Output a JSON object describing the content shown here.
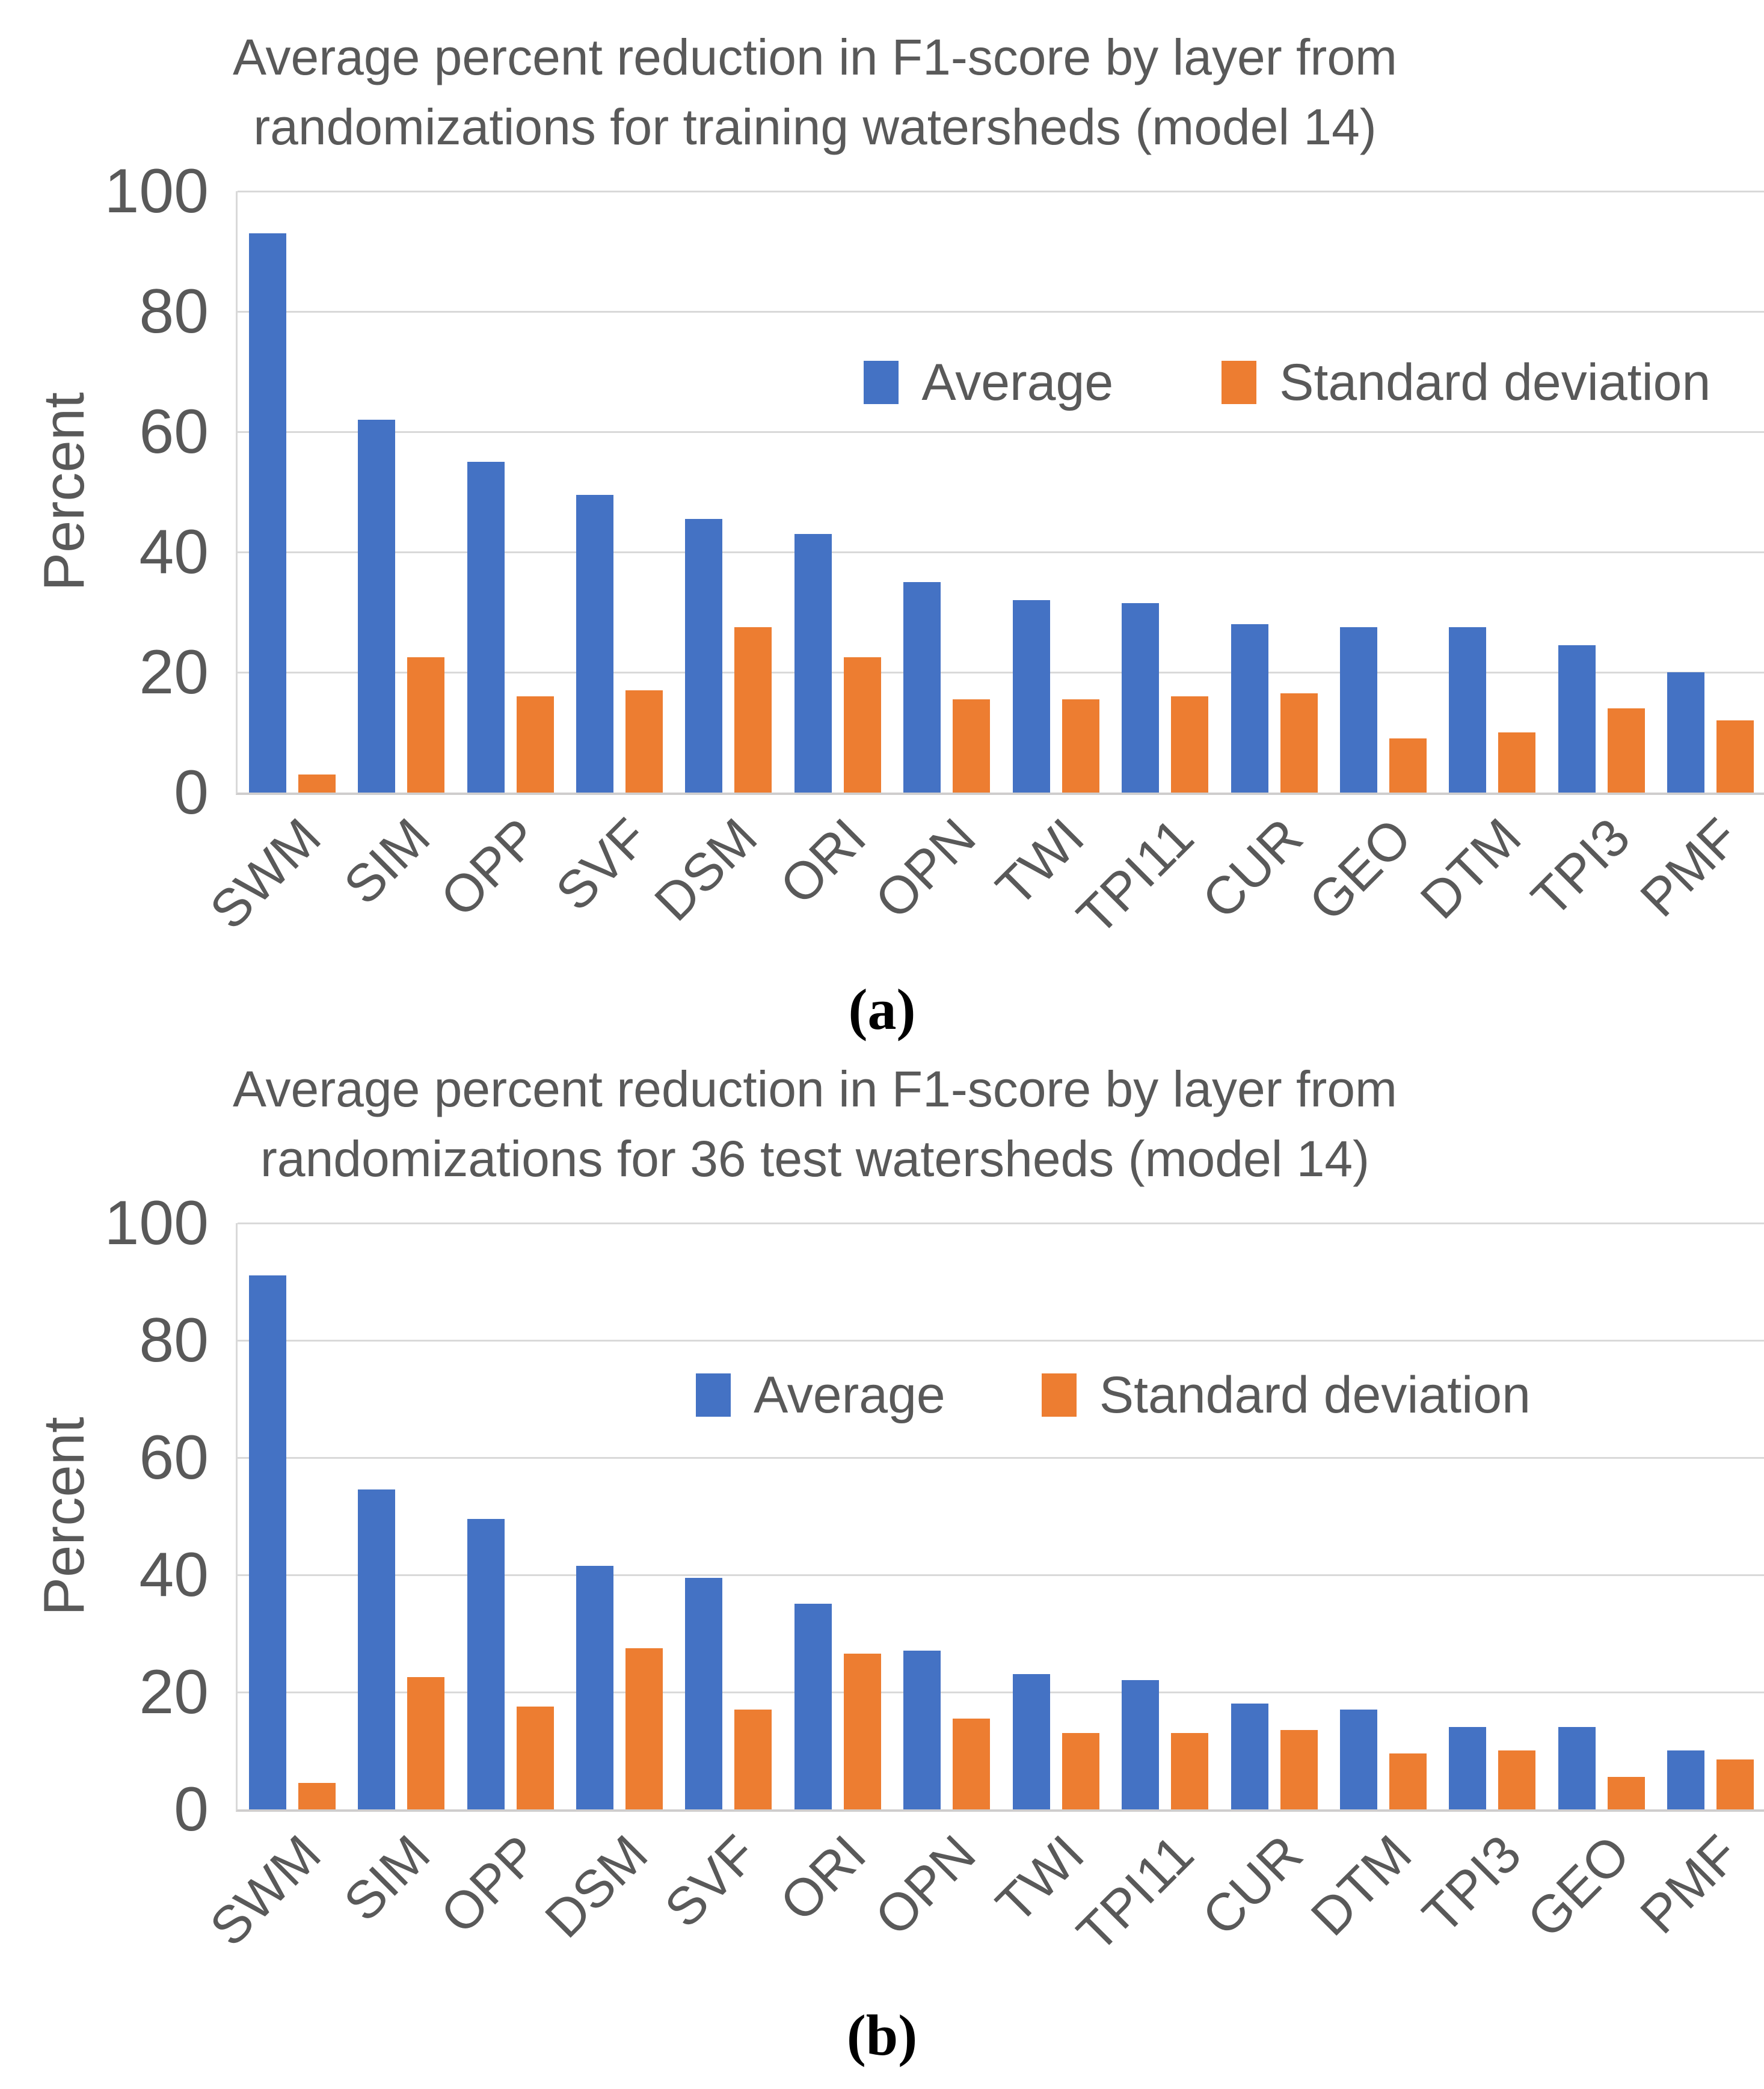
{
  "page": {
    "background": "#ffffff"
  },
  "colors": {
    "average_bar": "#4472C4",
    "stdev_bar": "#ED7D31",
    "text": "#595959",
    "gridline": "#D9D9D9",
    "axis_line": "#CFCDCD"
  },
  "captions": {
    "a": "(a)",
    "b": "(b)"
  },
  "chart_data": [
    {
      "type": "bar",
      "title": "Average percent reduction in F1-score by layer from randomizations for training watersheds (model 14)",
      "title_lines": [
        "Average percent reduction in F1-score by layer from",
        "randomizations for training watersheds (model 14)"
      ],
      "xlabel": "",
      "ylabel": "Percent",
      "ylim": [
        0,
        100
      ],
      "yticks": [
        0,
        20,
        40,
        60,
        80,
        100
      ],
      "grid": true,
      "legend_position": "inside-top-right",
      "legend": [
        "Average",
        "Standard deviation"
      ],
      "categories": [
        "SWM",
        "SIM",
        "OPP",
        "SVF",
        "DSM",
        "ORI",
        "OPN",
        "TWI",
        "TPI11",
        "CUR",
        "GEO",
        "DTM",
        "TPI3",
        "PMF"
      ],
      "series": [
        {
          "name": "Average",
          "color": "#4472C4",
          "values": [
            93,
            62,
            55,
            49.5,
            45.5,
            43,
            35,
            32,
            31.5,
            28,
            27.5,
            27.5,
            24.5,
            20
          ]
        },
        {
          "name": "Standard deviation",
          "color": "#ED7D31",
          "values": [
            3,
            22.5,
            16,
            17,
            27.5,
            22.5,
            15.5,
            15.5,
            16,
            16.5,
            9,
            10,
            14,
            12
          ]
        }
      ]
    },
    {
      "type": "bar",
      "title": "Average percent reduction in F1-score by layer from randomizations for 36 test watersheds (model 14)",
      "title_lines": [
        "Average percent reduction in F1-score by layer from",
        "randomizations for 36 test watersheds (model 14)"
      ],
      "xlabel": "",
      "ylabel": "Percent",
      "ylim": [
        0,
        100
      ],
      "yticks": [
        0,
        20,
        40,
        60,
        80,
        100
      ],
      "grid": true,
      "legend_position": "inside-top-right",
      "legend": [
        "Average",
        "Standard deviation"
      ],
      "categories": [
        "SWM",
        "SIM",
        "OPP",
        "DSM",
        "SVF",
        "ORI",
        "OPN",
        "TWI",
        "TPI11",
        "CUR",
        "DTM",
        "TPI3",
        "GEO",
        "PMF"
      ],
      "series": [
        {
          "name": "Average",
          "color": "#4472C4",
          "values": [
            91,
            54.5,
            49.5,
            41.5,
            39.5,
            35,
            27,
            23,
            22,
            18,
            17,
            14,
            14,
            10
          ]
        },
        {
          "name": "Standard deviation",
          "color": "#ED7D31",
          "values": [
            4.5,
            22.5,
            17.5,
            27.5,
            17,
            26.5,
            15.5,
            13,
            13,
            13.5,
            9.5,
            10,
            5.5,
            8.5
          ]
        }
      ]
    }
  ]
}
